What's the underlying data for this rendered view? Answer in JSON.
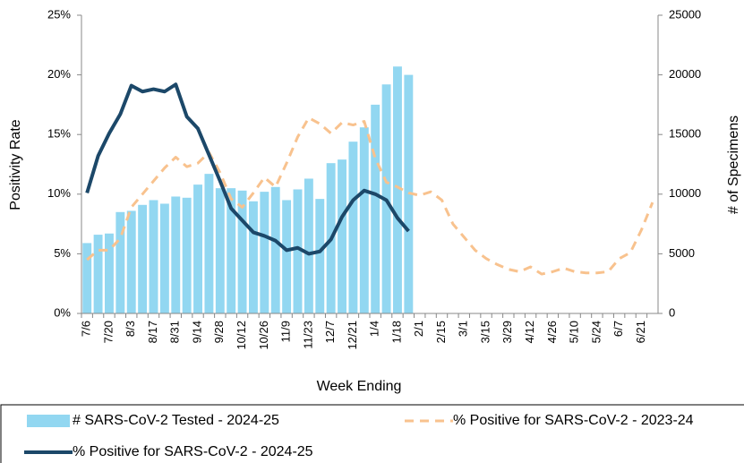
{
  "chart_data": {
    "type": "bar-line",
    "y_label": "Positivity Rate",
    "y2_label": "# of Specimens",
    "x_label": "Week Ending",
    "categories": [
      "7/6",
      null,
      "7/20",
      null,
      "8/3",
      null,
      "8/17",
      null,
      "8/31",
      null,
      "9/14",
      null,
      "9/28",
      null,
      "10/12",
      null,
      "10/26",
      null,
      "11/9",
      null,
      "11/23",
      null,
      "12/7",
      null,
      "12/21",
      null,
      "1/4",
      null,
      "1/18",
      null,
      "2/1",
      null,
      "2/15",
      null,
      "3/1",
      null,
      "3/15",
      null,
      "3/29",
      null,
      "4/12",
      null,
      "4/26",
      null,
      "5/10",
      null,
      "5/24",
      null,
      "6/7",
      null,
      "6/21",
      null
    ],
    "ylim": [
      0,
      25
    ],
    "yticks": [
      {
        "value": 0,
        "label": "0%"
      },
      {
        "value": 5,
        "label": "5%"
      },
      {
        "value": 10,
        "label": "10%"
      },
      {
        "value": 15,
        "label": "15%"
      },
      {
        "value": 20,
        "label": "20%"
      },
      {
        "value": 25,
        "label": "25%"
      }
    ],
    "y2lim": [
      0,
      25000
    ],
    "y2ticks": [
      0,
      5000,
      10000,
      15000,
      20000,
      25000
    ],
    "series": [
      {
        "name": "# SARS-CoV-2 Tested - 2024-25",
        "type": "bar",
        "axis": "y2",
        "color": "#92d7f1",
        "values": [
          5900,
          6600,
          6700,
          8500,
          8600,
          9100,
          9500,
          9200,
          9800,
          9700,
          10800,
          11700,
          10500,
          10500,
          10300,
          9400,
          10200,
          10600,
          9500,
          10400,
          11300,
          9600,
          12600,
          12900,
          14400,
          15600,
          17500,
          19200,
          20700,
          20000,
          null,
          null,
          null,
          null,
          null,
          null,
          null,
          null,
          null,
          null,
          null,
          null,
          null,
          null,
          null,
          null,
          null,
          null,
          null,
          null,
          null,
          null
        ]
      },
      {
        "name": "% Positive for SARS-CoV-2 - 2023-24",
        "type": "line",
        "dashed": true,
        "color": "#f8c28e",
        "values": [
          4.5,
          5.3,
          5.3,
          6.3,
          8.9,
          10.0,
          11.1,
          12.2,
          13.1,
          12.3,
          12.6,
          13.5,
          11.8,
          9.6,
          8.9,
          10.1,
          11.4,
          10.6,
          12.6,
          14.8,
          16.4,
          15.9,
          15.1,
          16.0,
          15.8,
          16.1,
          13.0,
          11.0,
          10.6,
          10.1,
          9.9,
          10.2,
          9.5,
          7.5,
          6.4,
          5.3,
          4.6,
          4.1,
          3.7,
          3.5,
          3.9,
          3.3,
          3.5,
          3.8,
          3.5,
          3.4,
          3.4,
          3.5,
          4.6,
          5.1,
          7.0,
          9.3
        ]
      },
      {
        "name": "% Positive for SARS-CoV-2 - 2024-25",
        "type": "line",
        "color": "#1c4869",
        "values": [
          10.1,
          13.2,
          15.1,
          16.7,
          19.1,
          18.6,
          18.8,
          18.6,
          19.2,
          16.5,
          15.5,
          13.3,
          11.1,
          8.8,
          7.8,
          6.8,
          6.5,
          6.1,
          5.3,
          5.5,
          5.0,
          5.2,
          6.2,
          8.1,
          9.5,
          10.3,
          10.0,
          9.5,
          8.0,
          6.9,
          null,
          null,
          null,
          null,
          null,
          null,
          null,
          null,
          null,
          null,
          null,
          null,
          null,
          null,
          null,
          null,
          null,
          null,
          null,
          null,
          null,
          null
        ]
      }
    ]
  }
}
